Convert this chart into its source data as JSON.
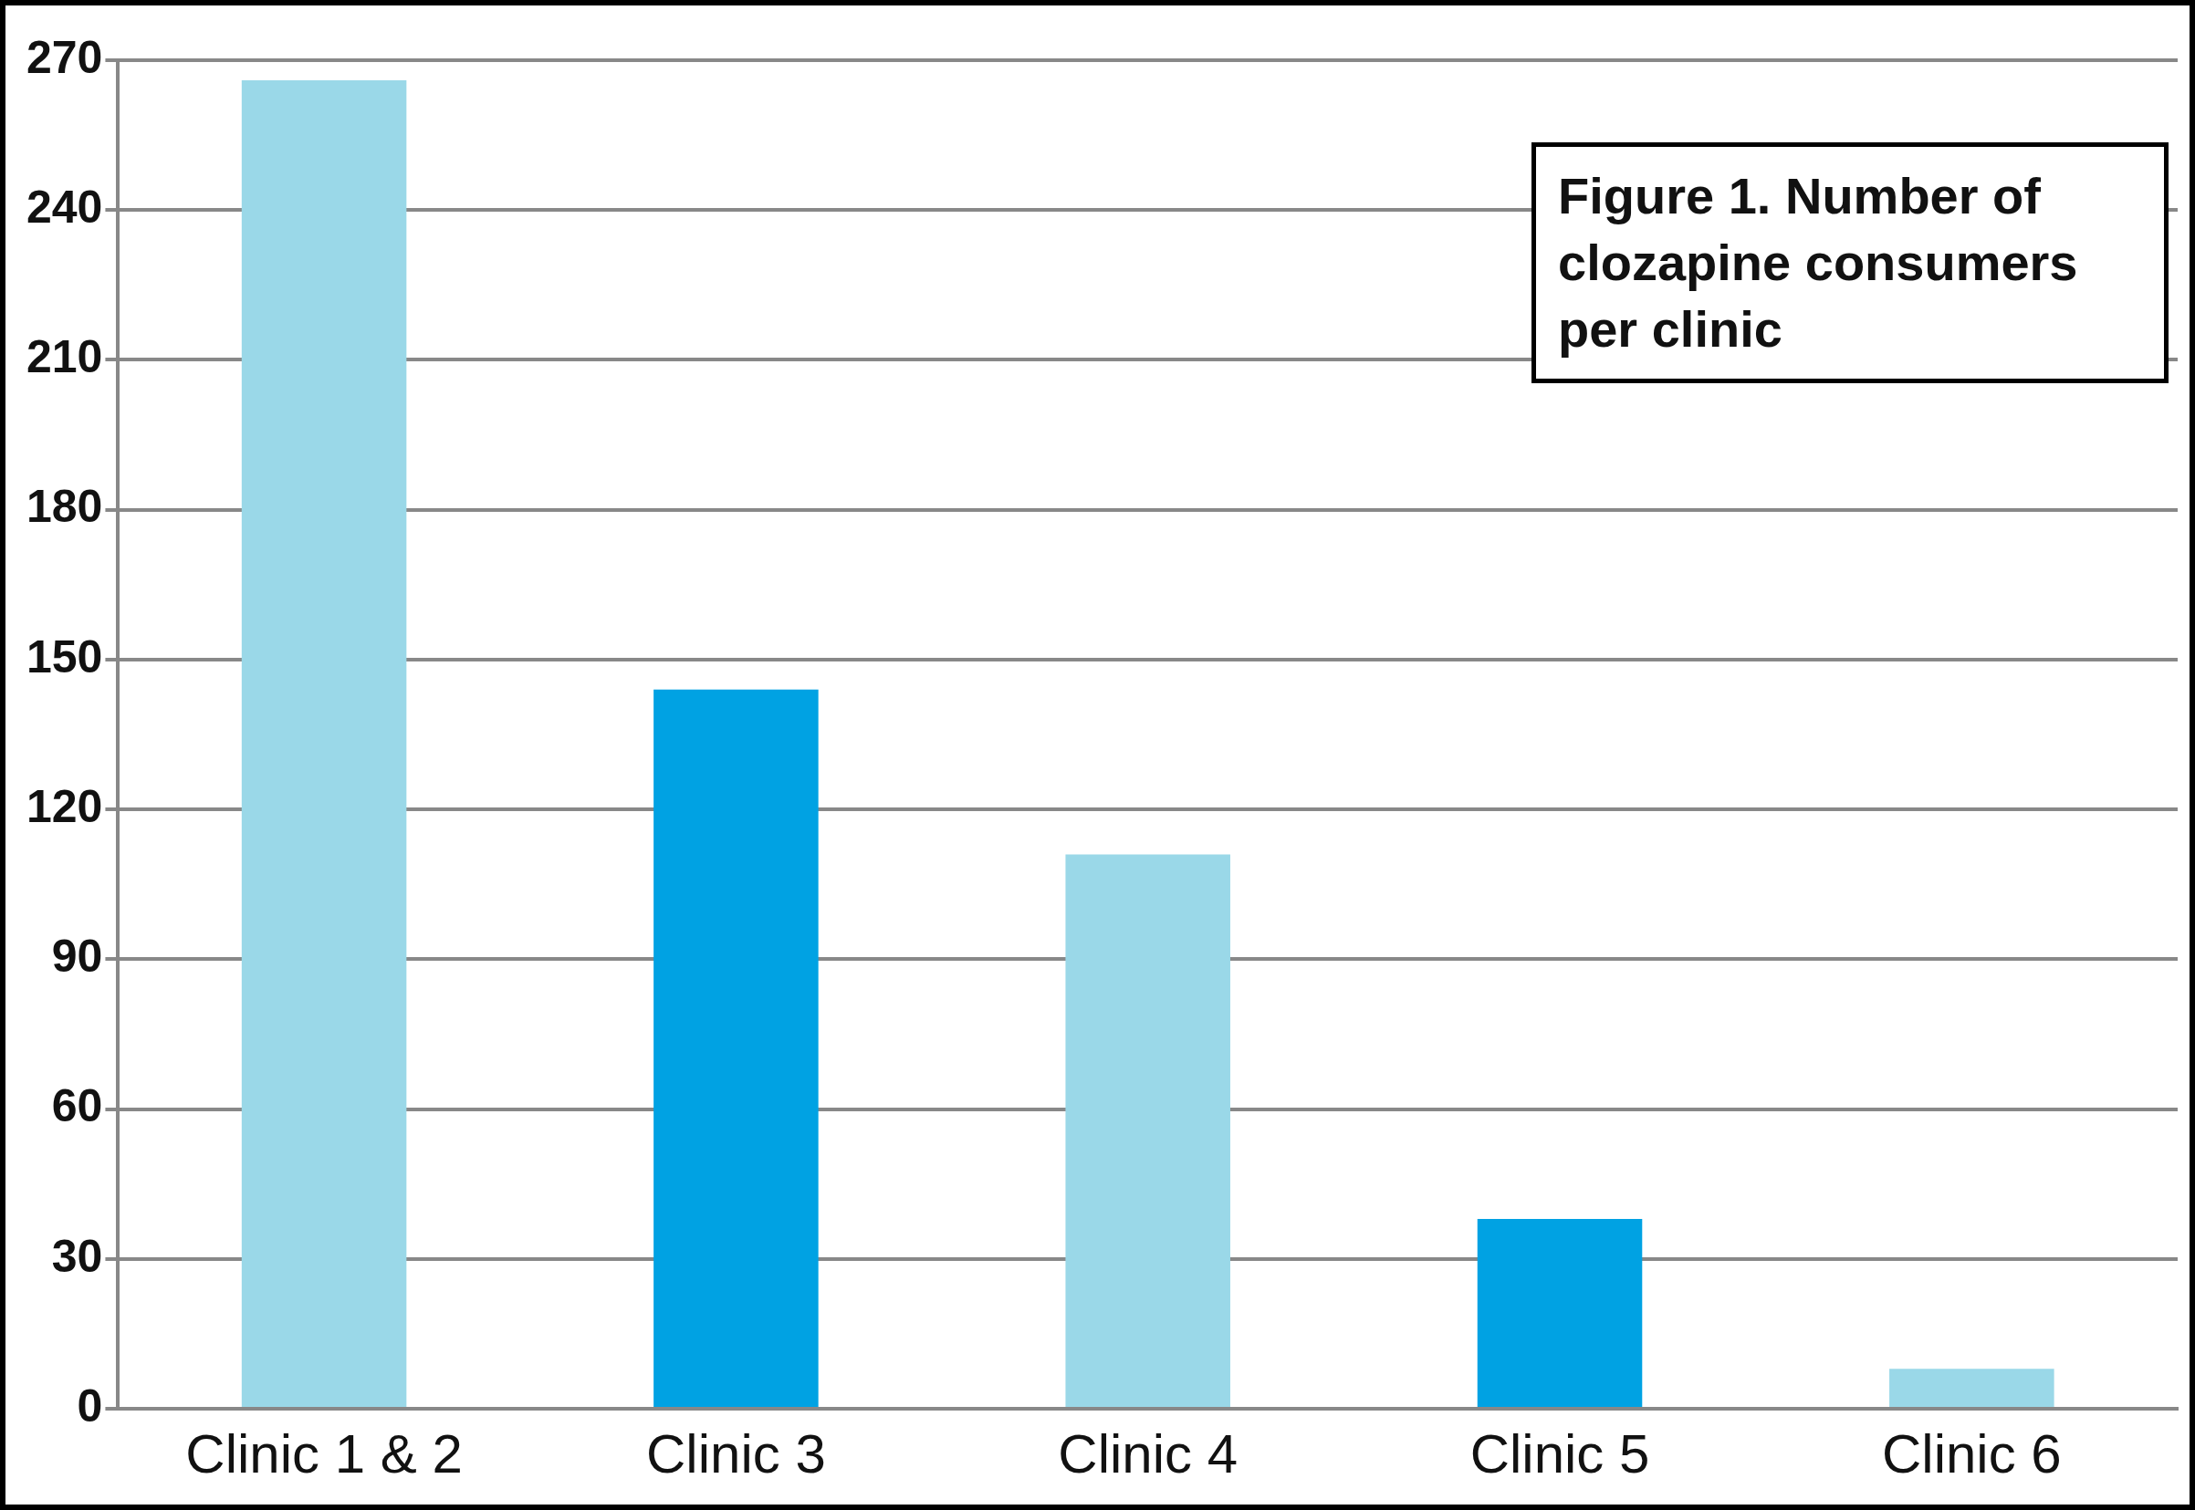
{
  "chart_data": {
    "type": "bar",
    "title": "Figure 1. Number of clozapine consumers per clinic",
    "categories": [
      "Clinic 1 & 2",
      "Clinic 3",
      "Clinic 4",
      "Clinic 5",
      "Clinic 6"
    ],
    "values": [
      266,
      144,
      111,
      38,
      8
    ],
    "colors": [
      "#9ad8e8",
      "#00a2e3",
      "#9ad8e8",
      "#00a2e3",
      "#9ad8e8"
    ],
    "ylim": [
      0,
      270
    ],
    "yticks": [
      0,
      30,
      60,
      90,
      120,
      150,
      180,
      210,
      240,
      270
    ],
    "grid": "y",
    "legend": false
  }
}
